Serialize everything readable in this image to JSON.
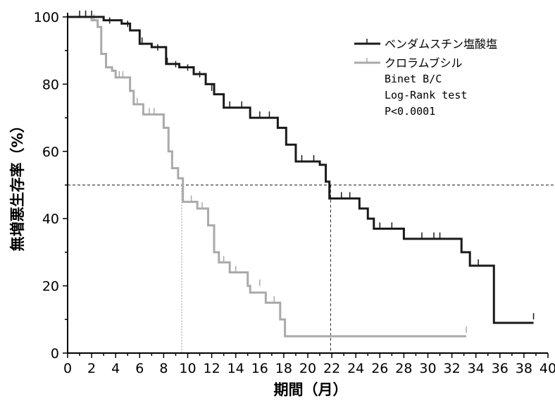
{
  "chart_data": {
    "type": "line",
    "xlabel": "期間（月）",
    "ylabel": "無増悪生存率（%）",
    "xlim": [
      0,
      40
    ],
    "ylim": [
      0,
      100
    ],
    "x_ticks": [
      0,
      2,
      4,
      6,
      8,
      10,
      12,
      14,
      16,
      18,
      20,
      22,
      24,
      26,
      28,
      30,
      32,
      34,
      36,
      38,
      40
    ],
    "y_ticks": [
      0,
      20,
      40,
      60,
      80,
      100
    ],
    "reference_line_y": 50,
    "median_x": [
      9.5,
      21.9
    ],
    "legend_position": "top-right",
    "annotations": [
      "Binet B/C",
      "Log-Rank test",
      "P<0.0001"
    ],
    "series": [
      {
        "name": "ベンダムスチン塩酸塩",
        "color": "#1a1a1a",
        "steps": [
          [
            0,
            100
          ],
          [
            3,
            99
          ],
          [
            4.5,
            98
          ],
          [
            5.2,
            96
          ],
          [
            6,
            92
          ],
          [
            7,
            91
          ],
          [
            8.2,
            86
          ],
          [
            9.3,
            85
          ],
          [
            10.5,
            83
          ],
          [
            11.5,
            80
          ],
          [
            12.2,
            77
          ],
          [
            13,
            73
          ],
          [
            15.2,
            70
          ],
          [
            17.5,
            67
          ],
          [
            18.2,
            62
          ],
          [
            19,
            57
          ],
          [
            21,
            56
          ],
          [
            21.5,
            51
          ],
          [
            21.8,
            46
          ],
          [
            24.3,
            43
          ],
          [
            25,
            40
          ],
          [
            25.5,
            37
          ],
          [
            28,
            34
          ],
          [
            32.8,
            30
          ],
          [
            33.5,
            26
          ],
          [
            35.5,
            9
          ],
          [
            38.8,
            9
          ]
        ],
        "censored": [
          [
            1,
            100
          ],
          [
            1.5,
            100
          ],
          [
            2,
            100
          ],
          [
            3.5,
            98
          ],
          [
            5,
            97
          ],
          [
            6.2,
            92
          ],
          [
            7.5,
            90
          ],
          [
            8.3,
            86
          ],
          [
            9,
            85
          ],
          [
            10,
            84
          ],
          [
            11,
            82
          ],
          [
            12,
            78
          ],
          [
            13.5,
            73
          ],
          [
            14.5,
            73
          ],
          [
            16,
            70
          ],
          [
            16.8,
            70
          ],
          [
            19.5,
            57
          ],
          [
            20.5,
            57
          ],
          [
            22.8,
            46
          ],
          [
            23.5,
            46
          ],
          [
            26,
            37
          ],
          [
            27,
            37
          ],
          [
            29.5,
            34
          ],
          [
            30.5,
            34
          ],
          [
            31,
            34
          ],
          [
            34.2,
            26
          ],
          [
            38.8,
            10
          ]
        ]
      },
      {
        "name": "クロラムブシル",
        "color": "#aaaaaa",
        "steps": [
          [
            0,
            100
          ],
          [
            2,
            99
          ],
          [
            2.5,
            97
          ],
          [
            2.8,
            89
          ],
          [
            3.2,
            85
          ],
          [
            3.7,
            84
          ],
          [
            4,
            82
          ],
          [
            5.2,
            78
          ],
          [
            5.5,
            74
          ],
          [
            6.3,
            71
          ],
          [
            8,
            67
          ],
          [
            8.4,
            60
          ],
          [
            8.7,
            55
          ],
          [
            9.2,
            52
          ],
          [
            9.6,
            45
          ],
          [
            10.8,
            43
          ],
          [
            11.7,
            38
          ],
          [
            12.2,
            30
          ],
          [
            12.6,
            27
          ],
          [
            13.5,
            24
          ],
          [
            15,
            20
          ],
          [
            15.2,
            18
          ],
          [
            16.5,
            15
          ],
          [
            17.7,
            10
          ],
          [
            18.1,
            5
          ],
          [
            33.2,
            5
          ]
        ],
        "censored": [
          [
            1.5,
            100
          ],
          [
            2.2,
            99
          ],
          [
            4.3,
            82
          ],
          [
            4.6,
            82
          ],
          [
            5.8,
            74
          ],
          [
            6.8,
            71
          ],
          [
            7.2,
            71
          ],
          [
            10.3,
            45
          ],
          [
            11.2,
            43
          ],
          [
            13,
            27
          ],
          [
            14,
            24
          ],
          [
            16,
            20
          ],
          [
            17.2,
            15
          ],
          [
            33.2,
            6
          ]
        ]
      }
    ]
  }
}
